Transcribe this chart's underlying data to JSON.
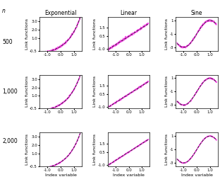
{
  "col_titles": [
    "Exponential",
    "Linear",
    "Sine"
  ],
  "row_labels": [
    "500",
    "1,000",
    "2,000"
  ],
  "n_label": "n",
  "xlabel": "Index variable",
  "ylabel": "Link functions",
  "true_color": "#333333",
  "est_color": "#FF44EE",
  "true_lw": 0.7,
  "est_lw": 0.9,
  "background_color": "#ffffff",
  "tick_labelsize": 4.0,
  "axis_labelsize": 4.5,
  "title_fontsize": 5.5,
  "row_labelsize": 5.5,
  "exp_ylim": [
    -0.5,
    3.5
  ],
  "lin_ylim": [
    -1.2,
    2.8
  ],
  "sine_ylim": [
    -3.5,
    1.5
  ],
  "exp_yticks": [
    -0.5,
    1.0,
    2.0,
    3.0
  ],
  "exp_yticklabels": [
    "-0.5",
    "1.0",
    "2.0",
    "3.0"
  ],
  "lin_yticks": [
    -1.0,
    0.5,
    1.5
  ],
  "lin_yticklabels": [
    "-1.0",
    "0.5",
    "1.5"
  ],
  "sine_yticks": [
    -3.0,
    -1.0,
    1.0
  ],
  "sine_yticklabels": [
    "-3",
    "-1",
    "1"
  ],
  "xticks": [
    -1.0,
    0.0,
    1.0
  ],
  "xticklabels": [
    "-1.0",
    "0.0",
    "1.0"
  ],
  "xlim": [
    -1.6,
    1.6
  ]
}
